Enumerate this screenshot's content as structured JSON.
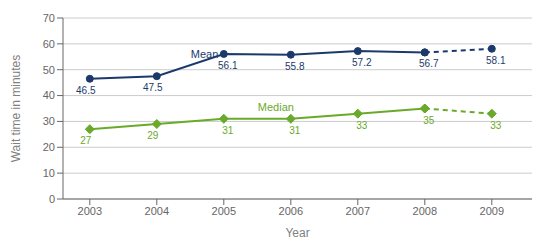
{
  "chart_data": {
    "type": "line",
    "x": [
      2003,
      2004,
      2005,
      2006,
      2007,
      2008,
      2009
    ],
    "xlim": [
      2002.6,
      2009.6
    ],
    "xticks": [
      2003,
      2004,
      2005,
      2006,
      2007,
      2008,
      2009
    ],
    "ylim": [
      0,
      70
    ],
    "yticks": [
      0,
      10,
      20,
      30,
      40,
      50,
      60,
      70
    ],
    "grid": "y",
    "xlabel": "Year",
    "ylabel": "Wait time in minutes",
    "series": [
      {
        "name": "Mean",
        "color": "#1b3a6b",
        "marker": "circle",
        "line_style": "solid",
        "data_labels": true,
        "values": [
          46.5,
          47.5,
          56.1,
          55.8,
          57.2,
          56.7,
          null
        ]
      },
      {
        "color": "#1b3a6b",
        "marker": "circle",
        "line_style": "dashed",
        "data_labels": true,
        "values": [
          null,
          null,
          null,
          null,
          null,
          56.7,
          58.1
        ]
      },
      {
        "name": "Median",
        "color": "#6aaa2a",
        "marker": "diamond",
        "line_style": "solid",
        "data_labels": true,
        "values": [
          27,
          29,
          31,
          31,
          33,
          35,
          null
        ]
      },
      {
        "color": "#6aaa2a",
        "marker": "diamond",
        "line_style": "dashed",
        "data_labels": true,
        "values": [
          null,
          null,
          null,
          null,
          null,
          35,
          33
        ]
      }
    ]
  }
}
